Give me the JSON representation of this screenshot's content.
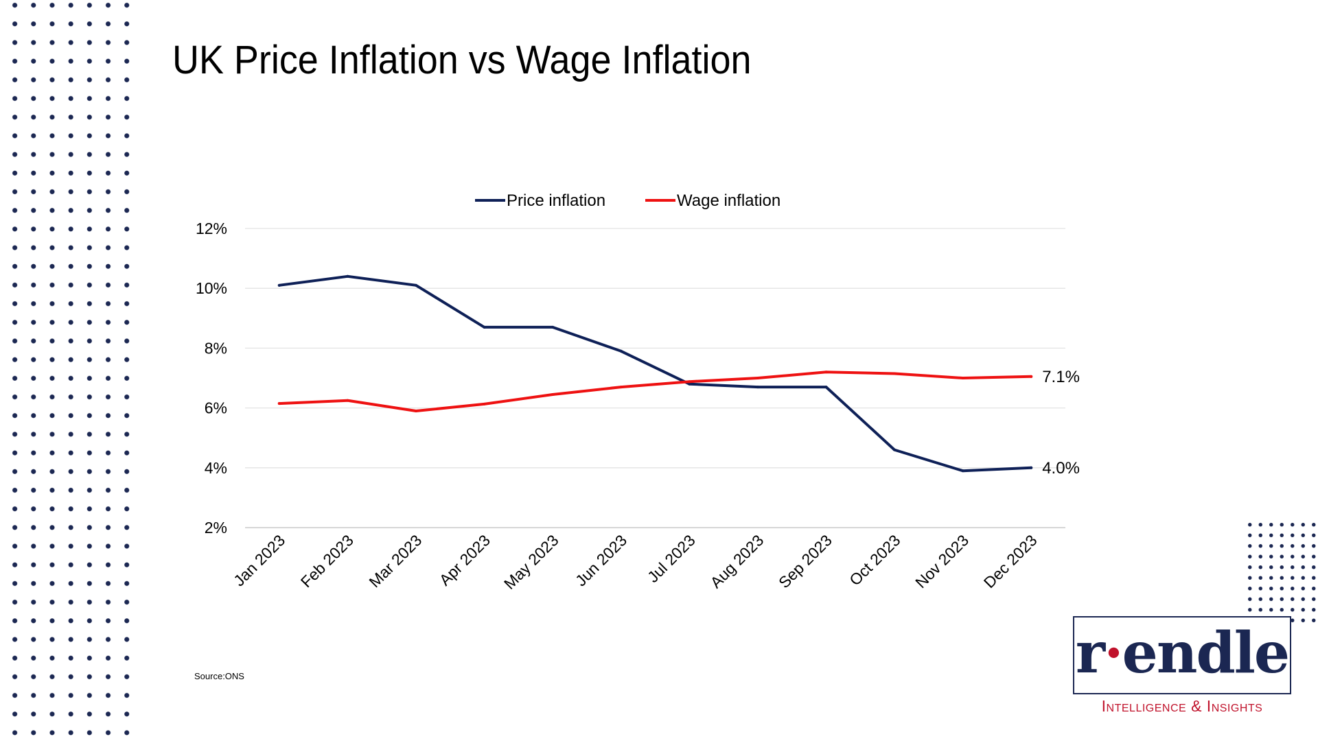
{
  "page": {
    "title": "UK Price Inflation vs Wage Inflation",
    "source": "Source:ONS"
  },
  "logo": {
    "wordmark": "rendle",
    "tagline": "Intelligence & Insights",
    "colors": {
      "navy": "#1b2752",
      "red": "#c0122b"
    }
  },
  "chart_data": {
    "type": "line",
    "title": "",
    "xlabel": "",
    "ylabel": "",
    "categories": [
      "Jan 2023",
      "Feb 2023",
      "Mar 2023",
      "Apr 2023",
      "May 2023",
      "Jun 2023",
      "Jul 2023",
      "Aug 2023",
      "Sep 2023",
      "Oct 2023",
      "Nov 2023",
      "Dec 2023"
    ],
    "ylim": [
      2,
      12
    ],
    "yticks": [
      2,
      4,
      6,
      8,
      10,
      12
    ],
    "ytick_labels": [
      "2%",
      "4%",
      "6%",
      "8%",
      "10%",
      "12%"
    ],
    "grid": true,
    "legend_position": "top-center",
    "series": [
      {
        "name": "Price inflation",
        "color": "#0e2057",
        "values": [
          10.1,
          10.4,
          10.1,
          8.7,
          8.7,
          7.9,
          6.8,
          6.7,
          6.7,
          4.6,
          3.9,
          4.0
        ],
        "end_label": "4.0%"
      },
      {
        "name": "Wage inflation",
        "color": "#ee1111",
        "values": [
          6.15,
          6.25,
          5.9,
          6.13,
          6.45,
          6.7,
          6.88,
          7.0,
          7.2,
          7.15,
          7.0,
          7.05
        ],
        "end_label": "7.1%"
      }
    ]
  }
}
